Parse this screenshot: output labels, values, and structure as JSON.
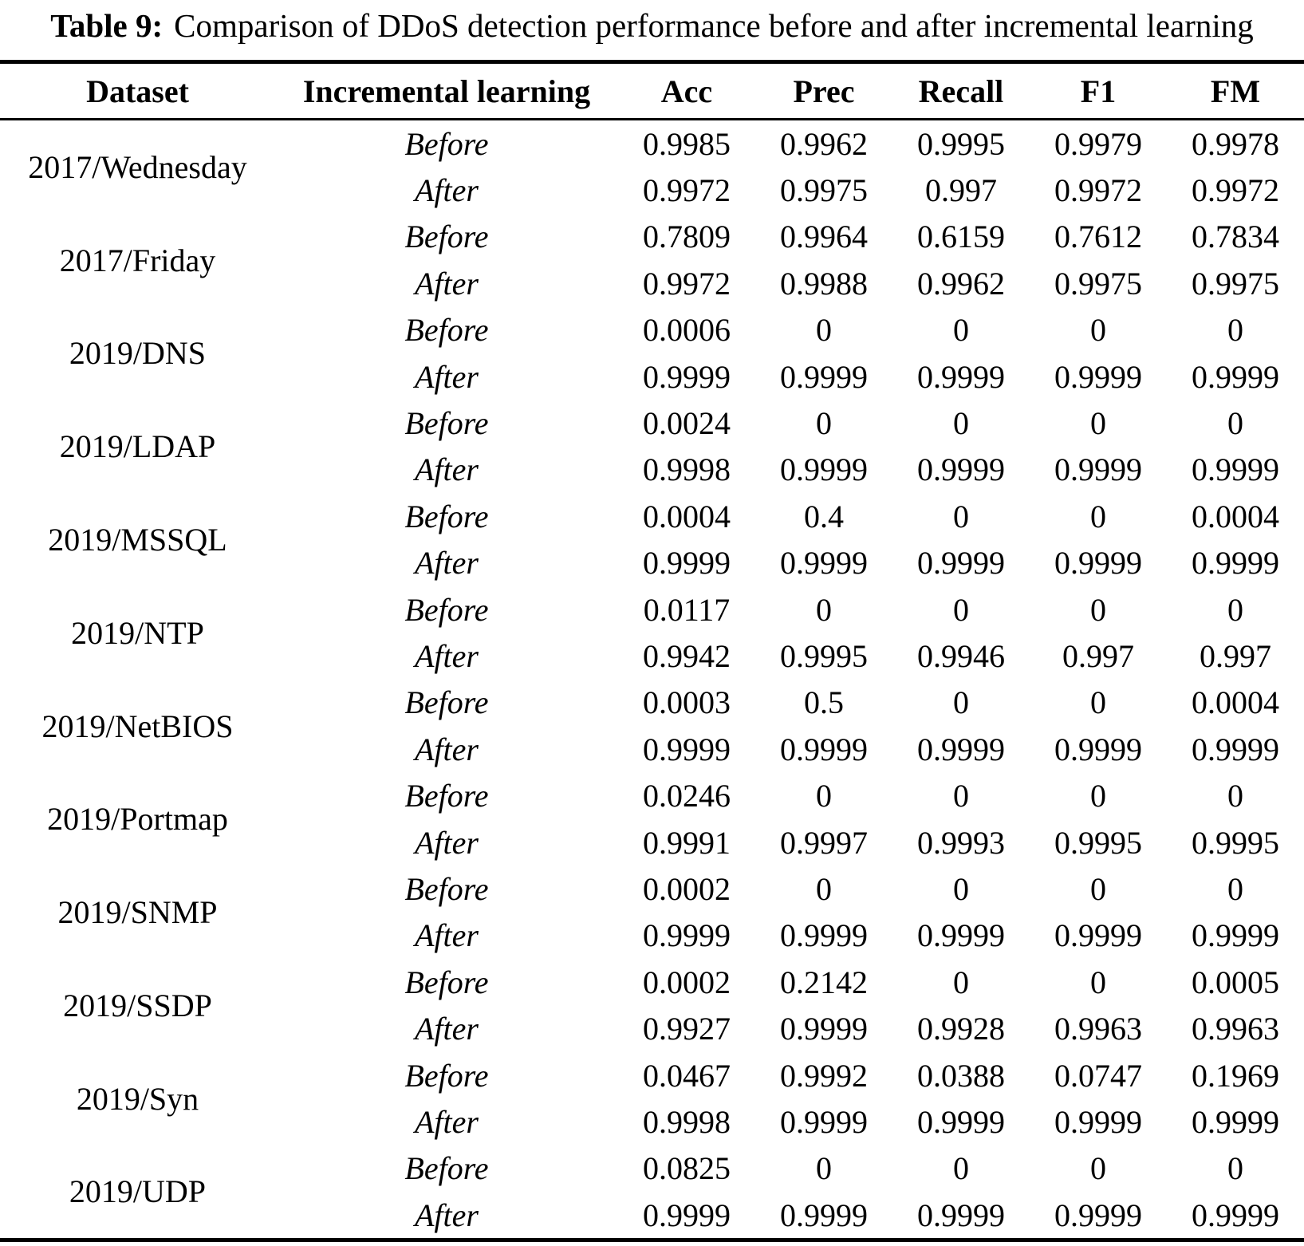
{
  "title": {
    "label": "Table 9:",
    "text": "Comparison of DDoS detection performance before and after incremental learning"
  },
  "table": {
    "columns": [
      "Dataset",
      "Incremental learning",
      "Acc",
      "Prec",
      "Recall",
      "F1",
      "FM"
    ],
    "groups": [
      {
        "dataset": "2017/Wednesday",
        "rows": [
          {
            "phase": "Before",
            "acc": "0.9985",
            "prec": "0.9962",
            "recall": "0.9995",
            "f1": "0.9979",
            "fm": "0.9978"
          },
          {
            "phase": "After",
            "acc": "0.9972",
            "prec": "0.9975",
            "recall": "0.997",
            "f1": "0.9972",
            "fm": "0.9972"
          }
        ]
      },
      {
        "dataset": "2017/Friday",
        "rows": [
          {
            "phase": "Before",
            "acc": "0.7809",
            "prec": "0.9964",
            "recall": "0.6159",
            "f1": "0.7612",
            "fm": "0.7834"
          },
          {
            "phase": "After",
            "acc": "0.9972",
            "prec": "0.9988",
            "recall": "0.9962",
            "f1": "0.9975",
            "fm": "0.9975"
          }
        ]
      },
      {
        "dataset": "2019/DNS",
        "rows": [
          {
            "phase": "Before",
            "acc": "0.0006",
            "prec": "0",
            "recall": "0",
            "f1": "0",
            "fm": "0"
          },
          {
            "phase": "After",
            "acc": "0.9999",
            "prec": "0.9999",
            "recall": "0.9999",
            "f1": "0.9999",
            "fm": "0.9999"
          }
        ]
      },
      {
        "dataset": "2019/LDAP",
        "rows": [
          {
            "phase": "Before",
            "acc": "0.0024",
            "prec": "0",
            "recall": "0",
            "f1": "0",
            "fm": "0"
          },
          {
            "phase": "After",
            "acc": "0.9998",
            "prec": "0.9999",
            "recall": "0.9999",
            "f1": "0.9999",
            "fm": "0.9999"
          }
        ]
      },
      {
        "dataset": "2019/MSSQL",
        "rows": [
          {
            "phase": "Before",
            "acc": "0.0004",
            "prec": "0.4",
            "recall": "0",
            "f1": "0",
            "fm": "0.0004"
          },
          {
            "phase": "After",
            "acc": "0.9999",
            "prec": "0.9999",
            "recall": "0.9999",
            "f1": "0.9999",
            "fm": "0.9999"
          }
        ]
      },
      {
        "dataset": "2019/NTP",
        "rows": [
          {
            "phase": "Before",
            "acc": "0.0117",
            "prec": "0",
            "recall": "0",
            "f1": "0",
            "fm": "0"
          },
          {
            "phase": "After",
            "acc": "0.9942",
            "prec": "0.9995",
            "recall": "0.9946",
            "f1": "0.997",
            "fm": "0.997"
          }
        ]
      },
      {
        "dataset": "2019/NetBIOS",
        "rows": [
          {
            "phase": "Before",
            "acc": "0.0003",
            "prec": "0.5",
            "recall": "0",
            "f1": "0",
            "fm": "0.0004"
          },
          {
            "phase": "After",
            "acc": "0.9999",
            "prec": "0.9999",
            "recall": "0.9999",
            "f1": "0.9999",
            "fm": "0.9999"
          }
        ]
      },
      {
        "dataset": "2019/Portmap",
        "rows": [
          {
            "phase": "Before",
            "acc": "0.0246",
            "prec": "0",
            "recall": "0",
            "f1": "0",
            "fm": "0"
          },
          {
            "phase": "After",
            "acc": "0.9991",
            "prec": "0.9997",
            "recall": "0.9993",
            "f1": "0.9995",
            "fm": "0.9995"
          }
        ]
      },
      {
        "dataset": "2019/SNMP",
        "rows": [
          {
            "phase": "Before",
            "acc": "0.0002",
            "prec": "0",
            "recall": "0",
            "f1": "0",
            "fm": "0"
          },
          {
            "phase": "After",
            "acc": "0.9999",
            "prec": "0.9999",
            "recall": "0.9999",
            "f1": "0.9999",
            "fm": "0.9999"
          }
        ]
      },
      {
        "dataset": "2019/SSDP",
        "rows": [
          {
            "phase": "Before",
            "acc": "0.0002",
            "prec": "0.2142",
            "recall": "0",
            "f1": "0",
            "fm": "0.0005"
          },
          {
            "phase": "After",
            "acc": "0.9927",
            "prec": "0.9999",
            "recall": "0.9928",
            "f1": "0.9963",
            "fm": "0.9963"
          }
        ]
      },
      {
        "dataset": "2019/Syn",
        "rows": [
          {
            "phase": "Before",
            "acc": "0.0467",
            "prec": "0.9992",
            "recall": "0.0388",
            "f1": "0.0747",
            "fm": "0.1969"
          },
          {
            "phase": "After",
            "acc": "0.9998",
            "prec": "0.9999",
            "recall": "0.9999",
            "f1": "0.9999",
            "fm": "0.9999"
          }
        ]
      },
      {
        "dataset": "2019/UDP",
        "rows": [
          {
            "phase": "Before",
            "acc": "0.0825",
            "prec": "0",
            "recall": "0",
            "f1": "0",
            "fm": "0"
          },
          {
            "phase": "After",
            "acc": "0.9999",
            "prec": "0.9999",
            "recall": "0.9999",
            "f1": "0.9999",
            "fm": "0.9999"
          }
        ]
      }
    ]
  }
}
